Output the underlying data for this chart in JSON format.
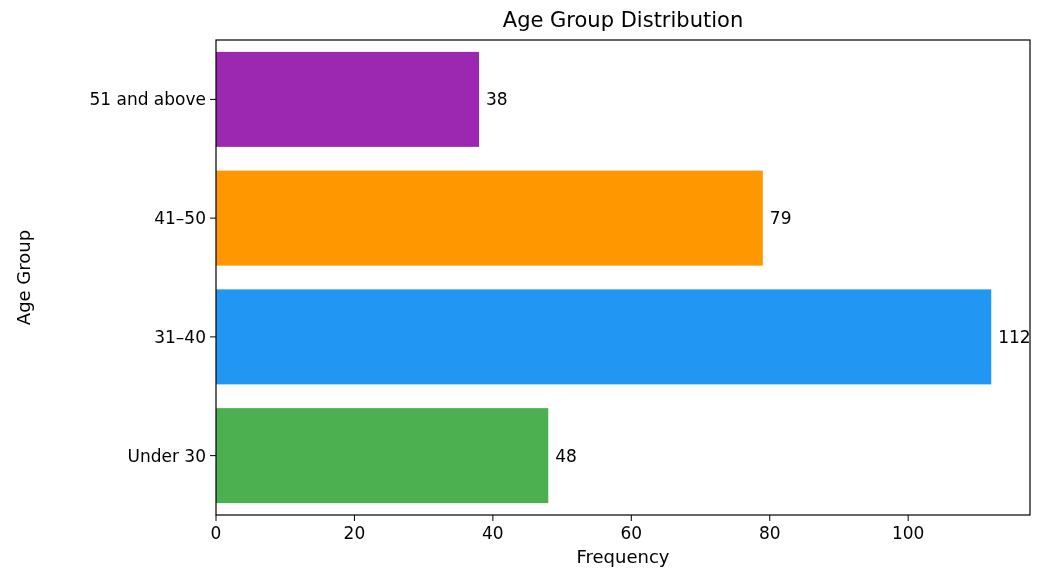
{
  "chart_data": {
    "type": "bar",
    "orientation": "horizontal",
    "title": "Age Group Distribution",
    "xlabel": "Frequency",
    "ylabel": "Age Group",
    "categories": [
      "51 and above",
      "41–50",
      "31–40",
      "Under 30"
    ],
    "values": [
      38,
      79,
      112,
      48
    ],
    "colors": [
      "#9c27b0",
      "#ff9800",
      "#2196f3",
      "#4caf50"
    ],
    "xlim": [
      0,
      117.6
    ],
    "xticks": [
      0,
      20,
      40,
      60,
      80,
      100
    ],
    "data_labels": true
  }
}
